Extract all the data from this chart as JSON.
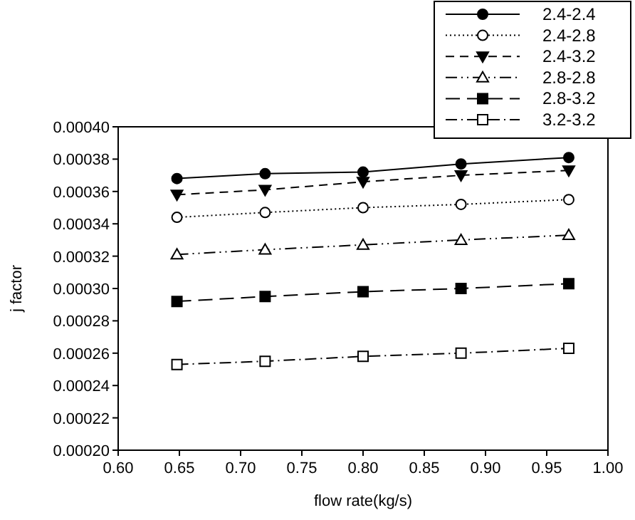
{
  "chart_data": {
    "type": "line",
    "xlabel": "flow rate(kg/s)",
    "ylabel": "j factor",
    "x": [
      0.648,
      0.72,
      0.8,
      0.88,
      0.968
    ],
    "series": [
      {
        "name": "2.4-2.4",
        "color": "#000000",
        "marker": "circle",
        "line_style": "solid",
        "values": [
          0.000368,
          0.000371,
          0.000372,
          0.000377,
          0.000381
        ]
      },
      {
        "name": "2.4-2.8",
        "color": "#000000",
        "marker": "circle-open",
        "line_style": "dotted",
        "values": [
          0.000344,
          0.000347,
          0.00035,
          0.000352,
          0.000355
        ]
      },
      {
        "name": "2.4-3.2",
        "color": "#000000",
        "marker": "triangle-down",
        "line_style": "dashed",
        "values": [
          0.000358,
          0.000361,
          0.000366,
          0.00037,
          0.000373
        ]
      },
      {
        "name": "2.8-2.8",
        "color": "#000000",
        "marker": "triangle-open",
        "line_style": "dashdotdot",
        "values": [
          0.000321,
          0.000324,
          0.000327,
          0.00033,
          0.000333
        ]
      },
      {
        "name": "2.8-3.2",
        "color": "#000000",
        "marker": "square",
        "line_style": "longdash",
        "values": [
          0.000292,
          0.000295,
          0.000298,
          0.0003,
          0.000303
        ]
      },
      {
        "name": "3.2-3.2",
        "color": "#000000",
        "marker": "square-open",
        "line_style": "dashdot",
        "values": [
          0.000253,
          0.000255,
          0.000258,
          0.00026,
          0.000263
        ]
      }
    ],
    "xlim": [
      0.6,
      1.0
    ],
    "xticks": [
      {
        "value": 0.6,
        "label": "0.60"
      },
      {
        "value": 0.65,
        "label": "0.65"
      },
      {
        "value": 0.7,
        "label": "0.70"
      },
      {
        "value": 0.75,
        "label": "0.75"
      },
      {
        "value": 0.8,
        "label": "0.80"
      },
      {
        "value": 0.85,
        "label": "0.85"
      },
      {
        "value": 0.9,
        "label": "0.90"
      },
      {
        "value": 0.95,
        "label": "0.95"
      },
      {
        "value": 1.0,
        "label": "1.00"
      }
    ],
    "ylim": [
      0.0002,
      0.0004
    ],
    "yticks": [
      {
        "value": 0.0002,
        "label": "0.00020"
      },
      {
        "value": 0.00022,
        "label": "0.00022"
      },
      {
        "value": 0.00024,
        "label": "0.00024"
      },
      {
        "value": 0.00026,
        "label": "0.00026"
      },
      {
        "value": 0.00028,
        "label": "0.00028"
      },
      {
        "value": 0.0003,
        "label": "0.00030"
      },
      {
        "value": 0.00032,
        "label": "0.00032"
      },
      {
        "value": 0.00034,
        "label": "0.00034"
      },
      {
        "value": 0.00036,
        "label": "0.00036"
      },
      {
        "value": 0.00038,
        "label": "0.00038"
      },
      {
        "value": 0.0004,
        "label": "0.00040"
      }
    ],
    "grid": false,
    "legend": "top right"
  }
}
